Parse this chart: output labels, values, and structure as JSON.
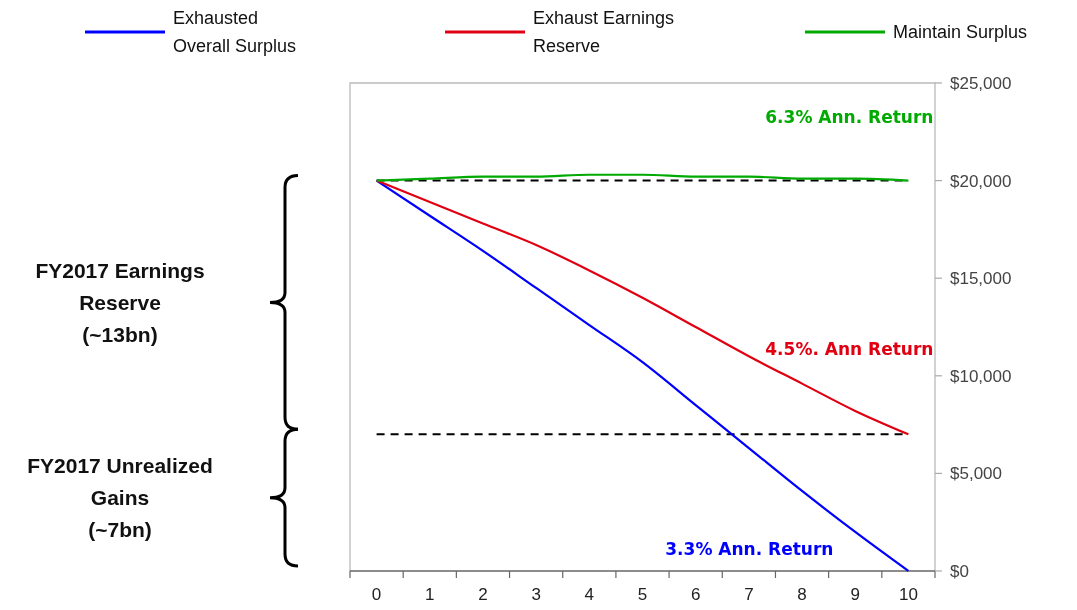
{
  "chart_data": {
    "type": "line",
    "x": [
      0,
      1,
      2,
      3,
      4,
      5,
      6,
      7,
      8,
      9,
      10
    ],
    "series": [
      {
        "name": "Exhausted Overall Surplus",
        "color": "#0000ff",
        "values": [
          20000,
          18200,
          16400,
          14500,
          12600,
          10700,
          8500,
          6300,
          4100,
          2000,
          0
        ]
      },
      {
        "name": "Exhaust Earnings Reserve",
        "color": "#e00012",
        "values": [
          20000,
          18900,
          17800,
          16700,
          15400,
          14000,
          12500,
          11000,
          9600,
          8200,
          7000
        ]
      },
      {
        "name": "Maintain Surplus",
        "color": "#00aa00",
        "values": [
          20000,
          20100,
          20200,
          20200,
          20300,
          20300,
          20200,
          20200,
          20100,
          20100,
          20000
        ]
      }
    ],
    "xlim": [
      -0.5,
      10.5
    ],
    "xticks": [
      0,
      1,
      2,
      3,
      4,
      5,
      6,
      7,
      8,
      9,
      10,
      {
        "value": -0.5,
        "label": null
      },
      {
        "value": 0.5,
        "label": null
      },
      {
        "value": 1.5,
        "label": null
      },
      {
        "value": 2.5,
        "label": null
      },
      {
        "value": 3.5,
        "label": null
      },
      {
        "value": 4.5,
        "label": null
      },
      {
        "value": 5.5,
        "label": null
      },
      {
        "value": 6.5,
        "label": null
      },
      {
        "value": 7.5,
        "label": null
      },
      {
        "value": 8.5,
        "label": null
      },
      {
        "value": 9.5,
        "label": null
      },
      {
        "value": 10.5,
        "label": null
      }
    ],
    "ylim": [
      0,
      25000
    ],
    "yticks": [
      {
        "value": 0,
        "label": "$0"
      },
      {
        "value": 5000,
        "label": "$5,000"
      },
      {
        "value": 10000,
        "label": "$10,000"
      },
      {
        "value": 15000,
        "label": "$15,000"
      },
      {
        "value": 20000,
        "label": "$20,000"
      },
      {
        "value": 25000,
        "label": "$25,000"
      }
    ],
    "ref_lines": [
      {
        "axis": "y",
        "value": 20000,
        "color": "#000000",
        "line_style": "dashed"
      },
      {
        "axis": "y",
        "value": 7000,
        "color": "#000000",
        "line_style": "dashed"
      }
    ],
    "annotations": [
      "3.3% Ann. Return",
      "4.5%. Ann Return",
      "6.3% Ann. Return",
      "FY2017 Earnings Reserve (~13bn)",
      "FY2017 Unrealized Gains (~7bn)"
    ],
    "legend": "top",
    "grid": false,
    "marker": "none",
    "line_style": "solid"
  }
}
